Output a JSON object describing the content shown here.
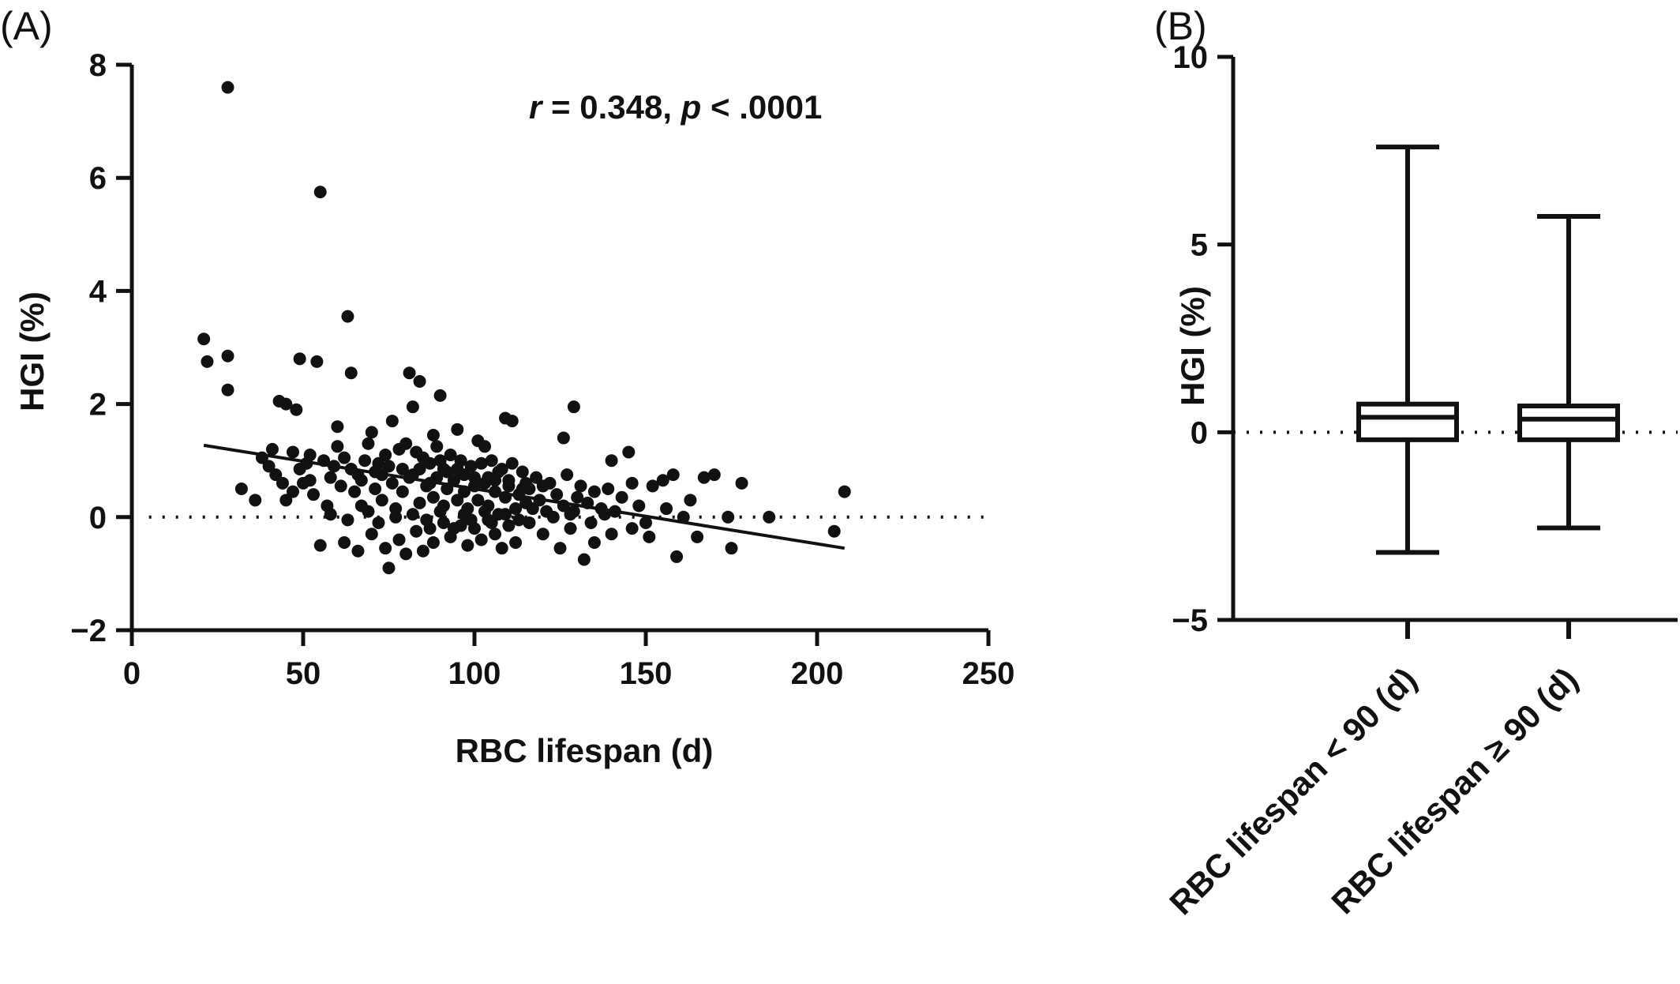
{
  "figure": {
    "panel_a_label": "(A)",
    "panel_b_label": "(B)"
  },
  "chart_data": [
    {
      "type": "scatter",
      "panel": "(A)",
      "xlabel": "RBC lifespan (d)",
      "ylabel": "HGI (%)",
      "xlim": [
        0,
        250
      ],
      "ylim": [
        -2,
        8
      ],
      "x_ticks": [
        "0",
        "50",
        "100",
        "150",
        "200",
        "250"
      ],
      "y_ticks": [
        "−2",
        "0",
        "2",
        "4",
        "6",
        "8"
      ],
      "annotation": {
        "r_symbol": "r",
        "r_text": " = 0.348, ",
        "p_symbol": "p",
        "p_text": " < .0001"
      },
      "reference_line_y": 0,
      "regression_line": {
        "x": [
          21,
          208
        ],
        "y": [
          1.27,
          -0.55
        ]
      },
      "points": [
        [
          28,
          7.6
        ],
        [
          55,
          5.75
        ],
        [
          63,
          3.55
        ],
        [
          21,
          3.15
        ],
        [
          28,
          2.85
        ],
        [
          22,
          2.75
        ],
        [
          49,
          2.8
        ],
        [
          54,
          2.75
        ],
        [
          64,
          2.55
        ],
        [
          81,
          2.55
        ],
        [
          84,
          2.4
        ],
        [
          28,
          2.25
        ],
        [
          90,
          2.15
        ],
        [
          43,
          2.05
        ],
        [
          48,
          1.9
        ],
        [
          45,
          2.0
        ],
        [
          82,
          1.95
        ],
        [
          129,
          1.95
        ],
        [
          109,
          1.75
        ],
        [
          111,
          1.7
        ],
        [
          60,
          1.6
        ],
        [
          70,
          1.5
        ],
        [
          76,
          1.7
        ],
        [
          95,
          1.55
        ],
        [
          88,
          1.45
        ],
        [
          101,
          1.35
        ],
        [
          126,
          1.4
        ],
        [
          103,
          1.25
        ],
        [
          145,
          1.15
        ],
        [
          140,
          1.0
        ],
        [
          38,
          1.05
        ],
        [
          41,
          1.2
        ],
        [
          47,
          1.15
        ],
        [
          52,
          1.1
        ],
        [
          56,
          1.0
        ],
        [
          59,
          0.9
        ],
        [
          64,
          0.85
        ],
        [
          68,
          1.0
        ],
        [
          72,
          0.95
        ],
        [
          74,
          1.1
        ],
        [
          78,
          1.2
        ],
        [
          80,
          1.3
        ],
        [
          83,
          1.15
        ],
        [
          85,
          1.05
        ],
        [
          87,
          0.95
        ],
        [
          90,
          1.0
        ],
        [
          93,
          1.1
        ],
        [
          96,
          1.0
        ],
        [
          99,
          0.9
        ],
        [
          102,
          0.95
        ],
        [
          105,
          1.0
        ],
        [
          108,
          0.85
        ],
        [
          111,
          0.95
        ],
        [
          114,
          0.8
        ],
        [
          118,
          0.7
        ],
        [
          122,
          0.6
        ],
        [
          127,
          0.75
        ],
        [
          131,
          0.55
        ],
        [
          135,
          0.45
        ],
        [
          139,
          0.5
        ],
        [
          143,
          0.35
        ],
        [
          146,
          0.6
        ],
        [
          152,
          0.55
        ],
        [
          155,
          0.65
        ],
        [
          158,
          0.75
        ],
        [
          163,
          0.3
        ],
        [
          167,
          0.7
        ],
        [
          170,
          0.75
        ],
        [
          178,
          0.6
        ],
        [
          32,
          0.5
        ],
        [
          36,
          0.3
        ],
        [
          42,
          0.75
        ],
        [
          45,
          0.3
        ],
        [
          50,
          0.6
        ],
        [
          53,
          0.4
        ],
        [
          57,
          0.2
        ],
        [
          61,
          0.55
        ],
        [
          65,
          0.45
        ],
        [
          67,
          0.2
        ],
        [
          71,
          0.5
        ],
        [
          73,
          0.3
        ],
        [
          76,
          0.6
        ],
        [
          77,
          0.15
        ],
        [
          79,
          0.45
        ],
        [
          81,
          0.7
        ],
        [
          84,
          0.25
        ],
        [
          86,
          0.55
        ],
        [
          88,
          0.35
        ],
        [
          89,
          0.7
        ],
        [
          91,
          0.2
        ],
        [
          92,
          0.5
        ],
        [
          94,
          0.65
        ],
        [
          95,
          0.3
        ],
        [
          97,
          0.45
        ],
        [
          98,
          0.15
        ],
        [
          100,
          0.55
        ],
        [
          101,
          0.3
        ],
        [
          103,
          0.6
        ],
        [
          104,
          0.2
        ],
        [
          106,
          0.45
        ],
        [
          107,
          0.05
        ],
        [
          109,
          0.35
        ],
        [
          110,
          0.55
        ],
        [
          112,
          0.15
        ],
        [
          113,
          0.4
        ],
        [
          115,
          0.25
        ],
        [
          116,
          0.5
        ],
        [
          119,
          0.3
        ],
        [
          121,
          0.1
        ],
        [
          124,
          0.4
        ],
        [
          126,
          0.2
        ],
        [
          128,
          0.05
        ],
        [
          130,
          0.35
        ],
        [
          133,
          0.25
        ],
        [
          137,
          0.15
        ],
        [
          141,
          0.1
        ],
        [
          148,
          0.2
        ],
        [
          150,
          -0.1
        ],
        [
          156,
          0.15
        ],
        [
          161,
          0.0
        ],
        [
          165,
          -0.35
        ],
        [
          174,
          0.0
        ],
        [
          186,
          0.0
        ],
        [
          55,
          -0.5
        ],
        [
          62,
          -0.45
        ],
        [
          66,
          -0.6
        ],
        [
          70,
          -0.3
        ],
        [
          74,
          -0.55
        ],
        [
          75,
          -0.9
        ],
        [
          78,
          -0.4
        ],
        [
          80,
          -0.65
        ],
        [
          83,
          -0.25
        ],
        [
          85,
          -0.6
        ],
        [
          87,
          -0.2
        ],
        [
          88,
          -0.45
        ],
        [
          91,
          -0.1
        ],
        [
          93,
          -0.35
        ],
        [
          96,
          -0.15
        ],
        [
          98,
          -0.5
        ],
        [
          100,
          -0.2
        ],
        [
          102,
          -0.4
        ],
        [
          104,
          -0.05
        ],
        [
          106,
          -0.3
        ],
        [
          108,
          -0.55
        ],
        [
          110,
          -0.15
        ],
        [
          112,
          -0.45
        ],
        [
          116,
          -0.1
        ],
        [
          120,
          -0.3
        ],
        [
          125,
          -0.55
        ],
        [
          128,
          -0.2
        ],
        [
          132,
          -0.75
        ],
        [
          135,
          -0.45
        ],
        [
          140,
          -0.3
        ],
        [
          146,
          -0.2
        ],
        [
          151,
          -0.35
        ],
        [
          159,
          -0.7
        ],
        [
          175,
          -0.55
        ],
        [
          205,
          -0.25
        ],
        [
          208,
          0.45
        ],
        [
          58,
          0.05
        ],
        [
          63,
          -0.05
        ],
        [
          69,
          0.1
        ],
        [
          72,
          -0.1
        ],
        [
          77,
          0.0
        ],
        [
          82,
          0.05
        ],
        [
          86,
          -0.05
        ],
        [
          90,
          0.1
        ],
        [
          94,
          -0.2
        ],
        [
          97,
          0.05
        ],
        [
          99,
          -0.05
        ],
        [
          103,
          0.1
        ],
        [
          105,
          -0.1
        ],
        [
          109,
          0.05
        ],
        [
          113,
          -0.05
        ],
        [
          117,
          0.15
        ],
        [
          123,
          0.0
        ],
        [
          129,
          0.1
        ],
        [
          134,
          -0.1
        ],
        [
          138,
          0.05
        ],
        [
          60,
          1.25
        ],
        [
          66,
          0.75
        ],
        [
          69,
          1.3
        ],
        [
          73,
          0.75
        ],
        [
          79,
          0.85
        ],
        [
          84,
          0.85
        ],
        [
          89,
          1.25
        ],
        [
          92,
          0.8
        ],
        [
          97,
          0.75
        ],
        [
          104,
          0.7
        ],
        [
          107,
          0.8
        ],
        [
          110,
          0.65
        ],
        [
          115,
          0.6
        ],
        [
          120,
          0.55
        ],
        [
          49,
          0.85
        ],
        [
          52,
          0.65
        ],
        [
          44,
          0.6
        ],
        [
          40,
          0.9
        ],
        [
          47,
          0.45
        ],
        [
          51,
          0.95
        ],
        [
          58,
          0.7
        ],
        [
          62,
          1.05
        ],
        [
          67,
          0.65
        ],
        [
          71,
          0.8
        ],
        [
          75,
          0.9
        ],
        [
          82,
          0.75
        ],
        [
          87,
          0.6
        ],
        [
          91,
          0.85
        ],
        [
          95,
          0.85
        ],
        [
          100,
          0.7
        ],
        [
          106,
          0.65
        ],
        [
          114,
          0.5
        ]
      ]
    },
    {
      "type": "box",
      "panel": "(B)",
      "ylabel": "HGI (%)",
      "ylim": [
        -5,
        10
      ],
      "y_ticks": [
        "−5",
        "0",
        "5",
        "10"
      ],
      "reference_line_y": 0,
      "categories": [
        "RBC lifespan < 90 (d)",
        "RBC lifespan ≥ 90 (d)"
      ],
      "boxes": [
        {
          "min": -3.2,
          "q1": -0.2,
          "median": 0.4,
          "q3": 0.75,
          "max": 7.6
        },
        {
          "min": -2.55,
          "q1": -0.2,
          "median": 0.35,
          "q3": 0.7,
          "max": 5.75
        }
      ]
    }
  ]
}
